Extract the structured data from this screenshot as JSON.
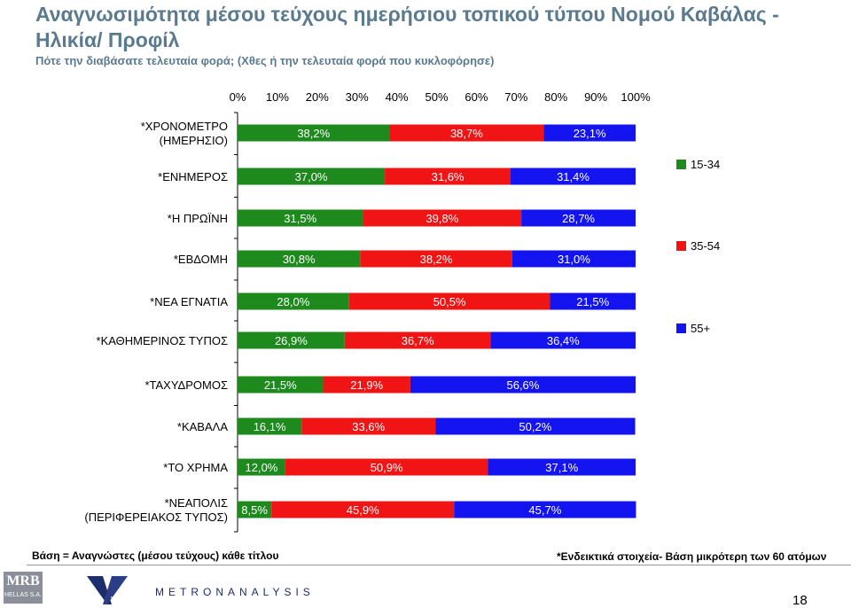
{
  "header": {
    "title": "Αναγνωσιμότητα μέσου τεύχους ημερήσιου τοπικού τύπου Νομού Καβάλας - Ηλικία/ Προφίλ",
    "subtitle": "Πότε την διαβάσατε τελευταία φορά; (Χθες ή την τελευταία φορά που κυκλοφόρησε)"
  },
  "chart_data": {
    "type": "bar",
    "stacked": true,
    "orientation": "horizontal",
    "percent_stacked": true,
    "xlim": [
      0,
      100
    ],
    "x_ticks": [
      "0%",
      "10%",
      "20%",
      "30%",
      "40%",
      "50%",
      "60%",
      "70%",
      "80%",
      "90%",
      "100%"
    ],
    "categories": [
      "*ΧΡΟΝΟΜΕΤΡΟ (ΗΜΕΡΗΣΙΟ)",
      "*ΕΝΗΜΕΡΟΣ",
      "*Η ΠΡΩΪΝΗ",
      "*ΕΒΔΟΜΗ",
      "*ΝΕΑ ΕΓΝΑΤΙΑ",
      "*ΚΑΘΗΜΕΡΙΝΟΣ ΤΥΠΟΣ",
      "*ΤΑΧΥΔΡΟΜΟΣ",
      "*ΚΑΒΑΛΑ",
      "*ΤΟ ΧΡΗΜΑ",
      "*ΝΕΑΠΟΛΙΣ (ΠΕΡΙΦΕΡΕΙΑΚΟΣ ΤΥΠΟΣ)"
    ],
    "series": [
      {
        "name": "15-34",
        "color": "#1e8a1e",
        "values": [
          38.2,
          37.0,
          31.5,
          30.8,
          28.0,
          26.9,
          21.5,
          16.1,
          12.0,
          8.5
        ],
        "labels": [
          "38,2%",
          "37,0%",
          "31,5%",
          "30,8%",
          "28,0%",
          "26,9%",
          "21,5%",
          "16,1%",
          "12,0%",
          "8,5%"
        ]
      },
      {
        "name": "35-54",
        "color": "#f01414",
        "values": [
          38.7,
          31.6,
          39.8,
          38.2,
          50.5,
          36.7,
          21.9,
          33.6,
          50.9,
          45.9
        ],
        "labels": [
          "38,7%",
          "31,6%",
          "39,8%",
          "38,2%",
          "50,5%",
          "36,7%",
          "21,9%",
          "33,6%",
          "50,9%",
          "45,9%"
        ]
      },
      {
        "name": "55+",
        "color": "#1414f0",
        "values": [
          23.1,
          31.4,
          28.7,
          31.0,
          21.5,
          36.4,
          56.6,
          50.2,
          37.1,
          45.7
        ],
        "labels": [
          "23,1%",
          "31,4%",
          "28,7%",
          "31,0%",
          "21,5%",
          "36,4%",
          "56,6%",
          "50,2%",
          "37,1%",
          "45,7%"
        ]
      }
    ],
    "grid": false
  },
  "footer": {
    "basis_left": "Βάση = Αναγνώστες (μέσου τεύχους) κάθε τίτλου",
    "basis_right": "*Ενδεικτικά στοιχεία- Βάση μικρότερη των 60 ατόμων",
    "page_number": "18",
    "logo_mrb": "MRB",
    "logo_mrb_sub": "HELLAS S.A.",
    "logo_vprc": "VPRC",
    "logo_metron": "METRONANALYSIS"
  }
}
